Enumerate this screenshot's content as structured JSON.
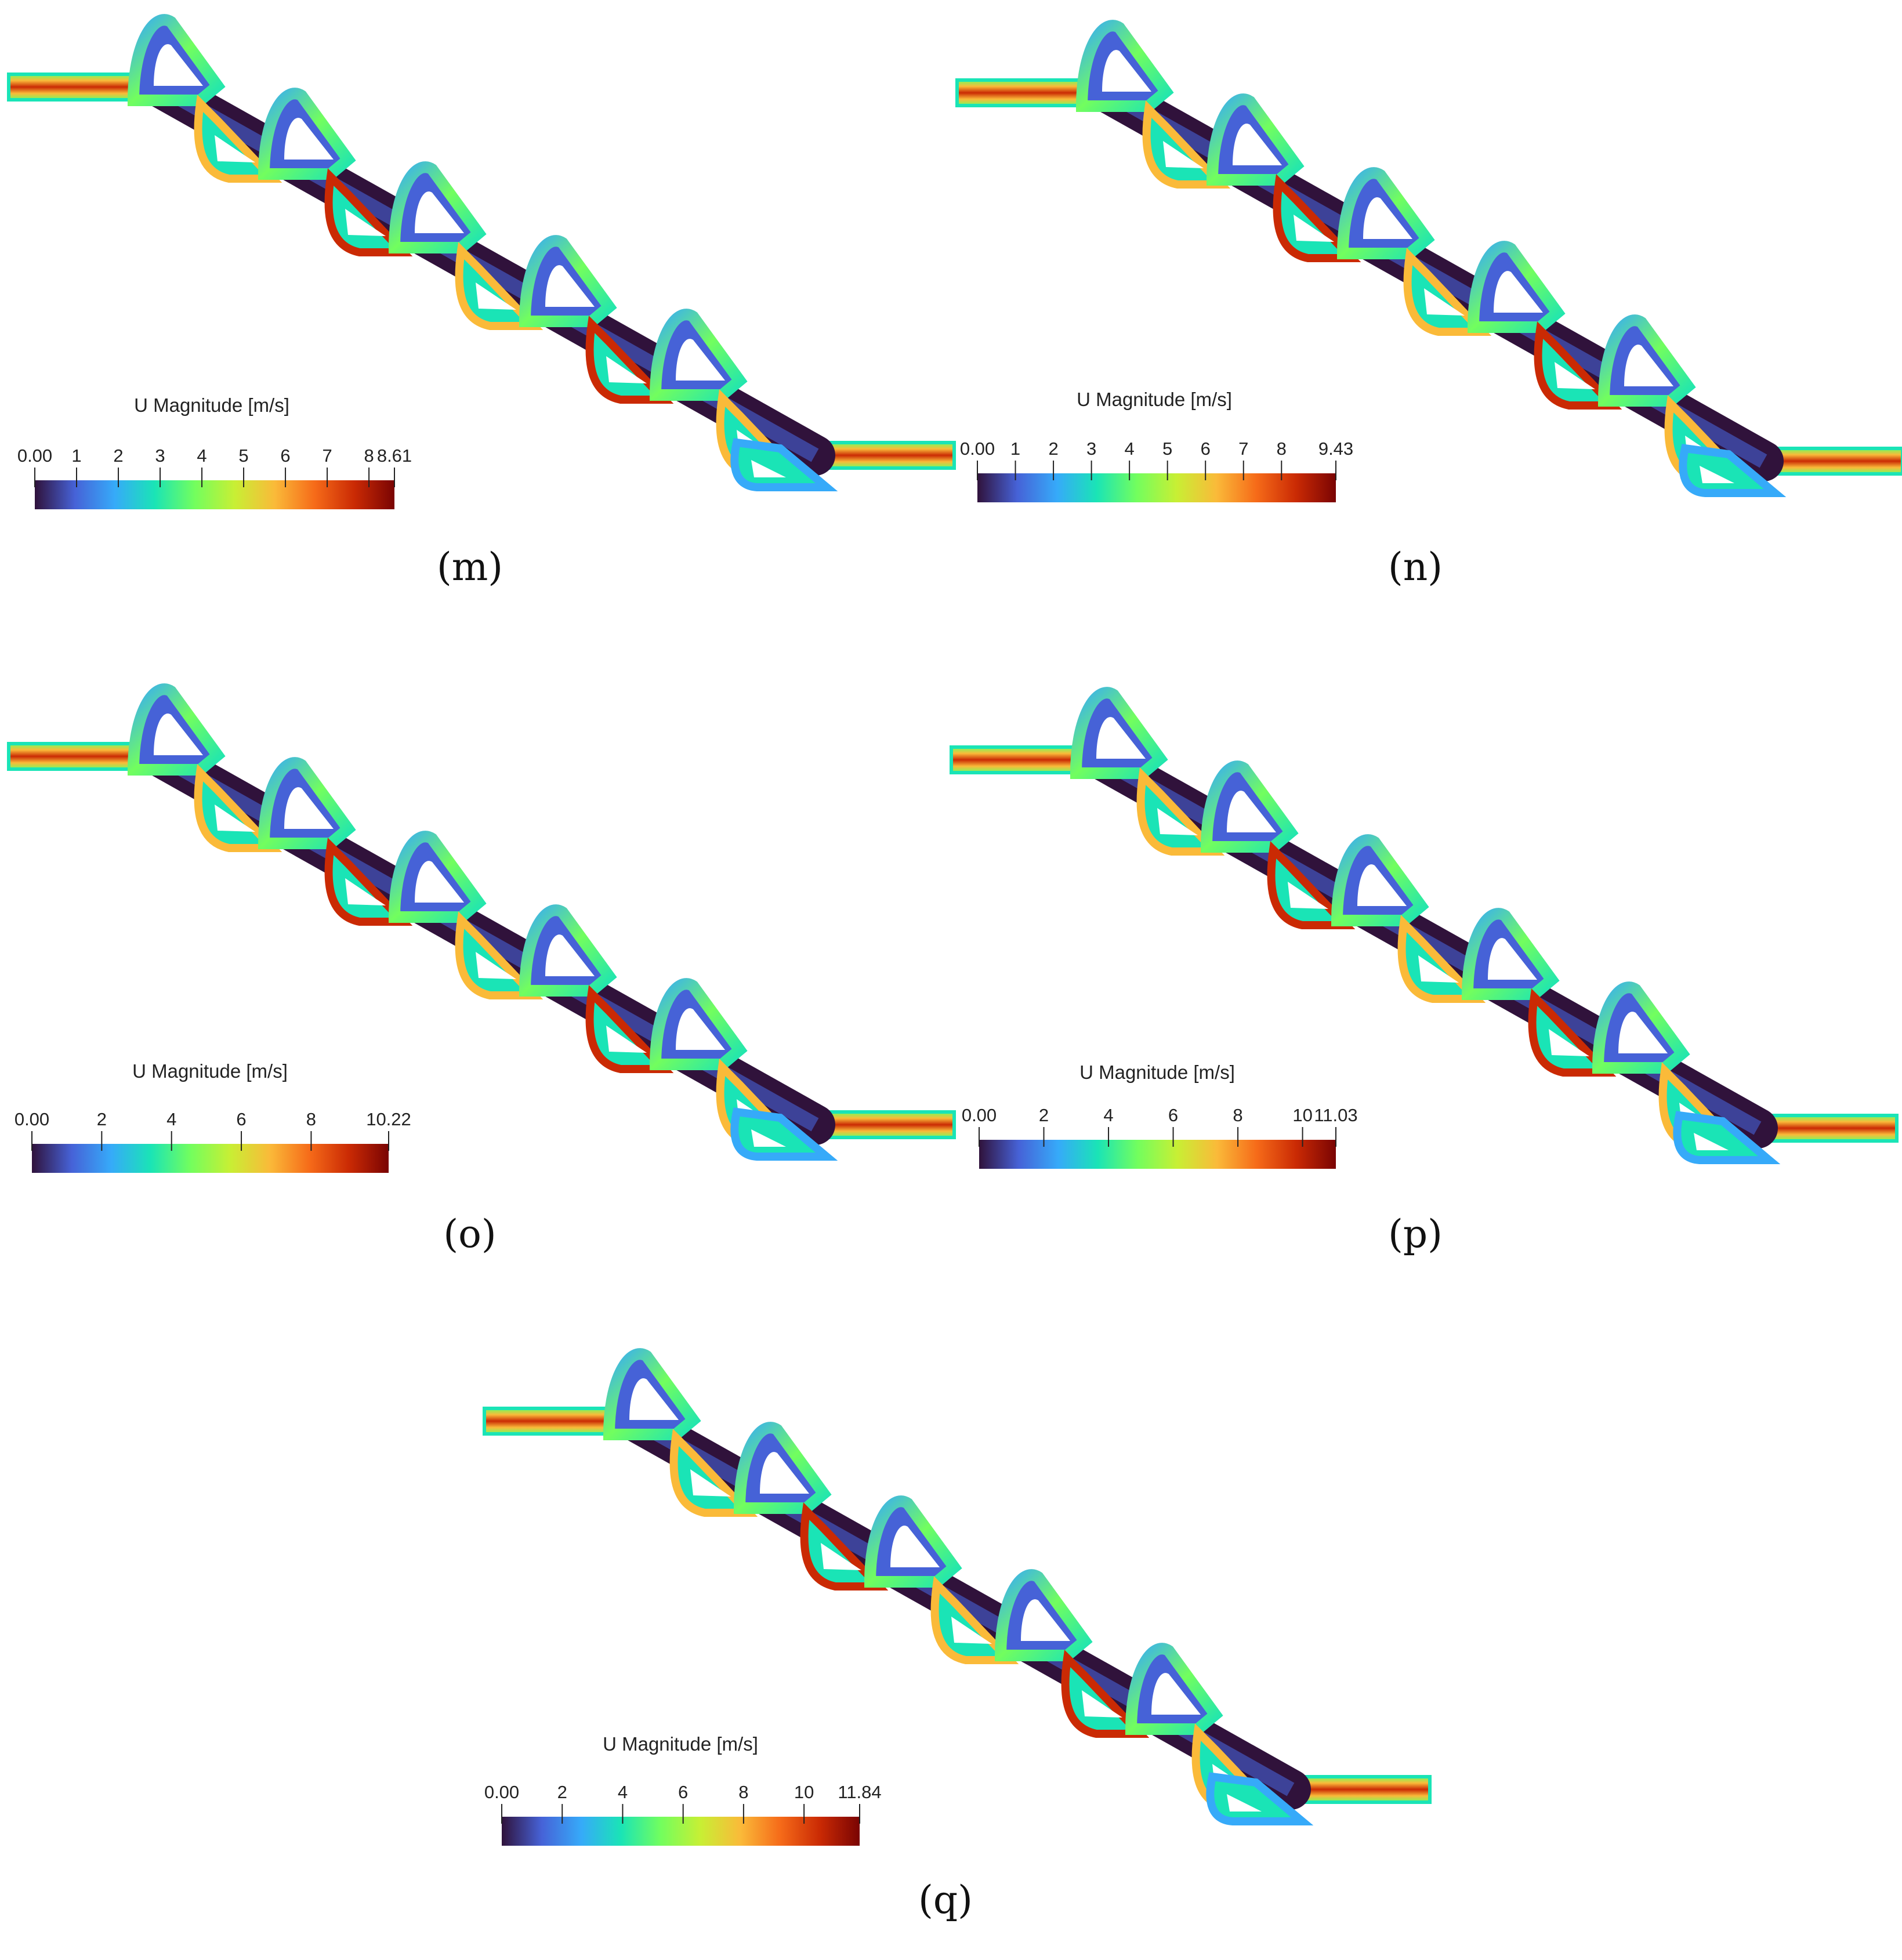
{
  "panels": [
    {
      "id": "m",
      "caption": "(m)",
      "colorbar": {
        "title": "U Magnitude [m/s]",
        "min": 0,
        "max": 8.61,
        "ticks": [
          "0.00",
          "1",
          "2",
          "3",
          "4",
          "5",
          "6",
          "7",
          "8",
          "8.61"
        ],
        "tick_values": [
          0,
          1,
          2,
          3,
          4,
          5,
          6,
          7,
          8,
          8.61
        ]
      }
    },
    {
      "id": "n",
      "caption": "(n)",
      "colorbar": {
        "title": "U Magnitude [m/s]",
        "min": 0,
        "max": 9.43,
        "ticks": [
          "0.00",
          "1",
          "2",
          "3",
          "4",
          "5",
          "6",
          "7",
          "8",
          "9.43"
        ],
        "tick_values": [
          0,
          1,
          2,
          3,
          4,
          5,
          6,
          7,
          8,
          9.43
        ]
      }
    },
    {
      "id": "o",
      "caption": "(o)",
      "colorbar": {
        "title": "U Magnitude [m/s]",
        "min": 0,
        "max": 10.22,
        "ticks": [
          "0.00",
          "2",
          "4",
          "6",
          "8",
          "10.22"
        ],
        "tick_values": [
          0,
          2,
          4,
          6,
          8,
          10.22
        ]
      }
    },
    {
      "id": "p",
      "caption": "(p)",
      "colorbar": {
        "title": "U Magnitude [m/s]",
        "min": 0,
        "max": 11.03,
        "ticks": [
          "0.00",
          "2",
          "4",
          "6",
          "8",
          "10",
          "11.03"
        ],
        "tick_values": [
          0,
          2,
          4,
          6,
          8,
          10,
          11.03
        ]
      }
    },
    {
      "id": "q",
      "caption": "(q)",
      "colorbar": {
        "title": "U Magnitude [m/s]",
        "min": 0,
        "max": 11.84,
        "ticks": [
          "0.00",
          "2",
          "4",
          "6",
          "8",
          "10",
          "11.84"
        ],
        "tick_values": [
          0,
          2,
          4,
          6,
          8,
          10,
          11.84
        ]
      }
    }
  ],
  "colormap": [
    "#30123b",
    "#4662d7",
    "#36aaf9",
    "#1ae4b6",
    "#72fe5e",
    "#c8ef34",
    "#faba39",
    "#f66b19",
    "#ca2a04",
    "#7a0403"
  ]
}
